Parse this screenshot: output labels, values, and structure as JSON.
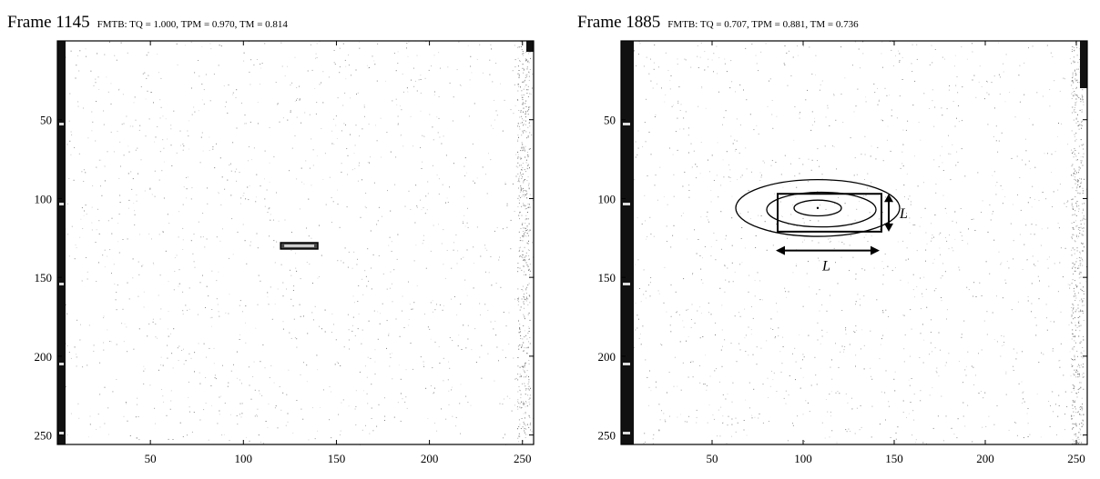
{
  "chart_data": [
    {
      "type": "heatmap",
      "frame_label": "Frame 1145",
      "metrics": "FMTB: TQ = 1.000, TPM = 0.970, TM = 0.814",
      "x_ticks": [
        50,
        100,
        150,
        200,
        250
      ],
      "y_ticks": [
        50,
        100,
        150,
        200,
        250
      ],
      "xlim": [
        0,
        256
      ],
      "ylim": [
        0,
        256
      ],
      "y_inverted": true,
      "grid": false,
      "colormap": "grayscale",
      "target_box": {
        "x_range": [
          120,
          140
        ],
        "y_range": [
          128,
          132
        ]
      }
    },
    {
      "type": "heatmap",
      "frame_label": "Frame 1885",
      "metrics": "FMTB: TQ = 0.707, TPM = 0.881, TM = 0.736",
      "x_ticks": [
        50,
        100,
        150,
        200,
        250
      ],
      "y_ticks": [
        50,
        100,
        150,
        200,
        250
      ],
      "xlim": [
        0,
        256
      ],
      "ylim": [
        0,
        256
      ],
      "y_inverted": true,
      "grid": false,
      "colormap": "grayscale",
      "target_box": {
        "x_range": [
          86,
          143
        ],
        "y_range": [
          97,
          121
        ]
      },
      "contours": [
        {
          "cx": 108,
          "cy": 106,
          "rx": 45,
          "ry": 18
        },
        {
          "cx": 110,
          "cy": 107,
          "rx": 30,
          "ry": 11
        },
        {
          "cx": 108,
          "cy": 106,
          "rx": 13,
          "ry": 5
        }
      ],
      "annotations": [
        {
          "label": "L",
          "type": "vertical-arrow",
          "x": 147,
          "y_range": [
            97,
            121
          ]
        },
        {
          "label": "L",
          "type": "horizontal-arrow",
          "y": 133,
          "x_range": [
            85,
            142
          ]
        }
      ]
    }
  ]
}
